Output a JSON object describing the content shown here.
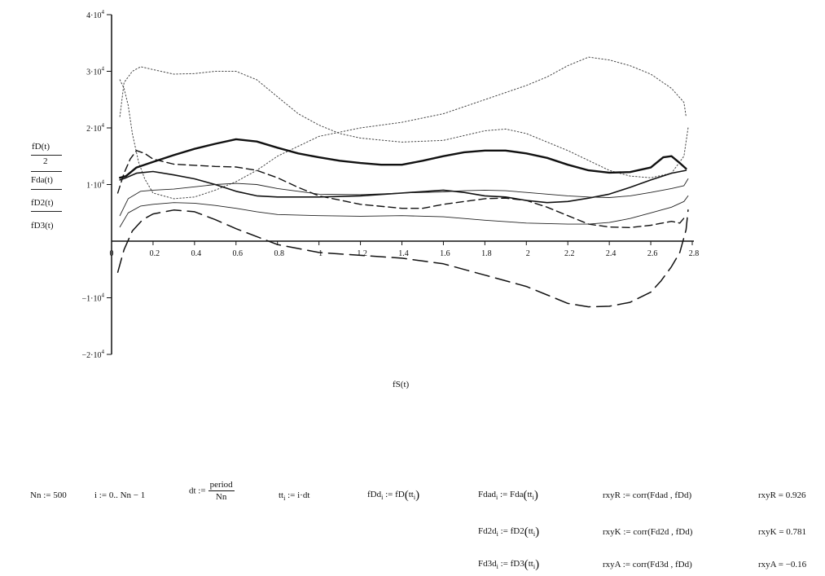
{
  "chart_data": {
    "type": "line",
    "xlabel": "fS(t)",
    "ylabels": [
      "fD(t)",
      "2",
      "Fda(t)",
      "fD2(t)",
      "fD3(t)"
    ],
    "xlim": [
      0,
      2.8
    ],
    "ylim": [
      -20000,
      40000
    ],
    "x_ticks": [
      "0",
      "0.2",
      "0.4",
      "0.6",
      "0.8",
      "1",
      "1.2",
      "1.4",
      "1.6",
      "1.8",
      "2",
      "2.2",
      "2.4",
      "2.6",
      "2.8"
    ],
    "y_ticks": [
      {
        "value": 40000,
        "mant": "4·10",
        "exp": "4"
      },
      {
        "value": 30000,
        "mant": "3·10",
        "exp": "4"
      },
      {
        "value": 20000,
        "mant": "2·10",
        "exp": "4"
      },
      {
        "value": 10000,
        "mant": "1·10",
        "exp": "4"
      },
      {
        "value": -10000,
        "mant": "−1·10",
        "exp": "4"
      },
      {
        "value": -20000,
        "mant": "−2·10",
        "exp": "4"
      }
    ],
    "series": [
      {
        "style": "dotted",
        "points": [
          [
            0.04,
            28500
          ],
          [
            0.06,
            27000
          ],
          [
            0.08,
            24000
          ],
          [
            0.1,
            19000
          ],
          [
            0.13,
            14000
          ],
          [
            0.16,
            11000
          ],
          [
            0.2,
            8500
          ],
          [
            0.3,
            7500
          ],
          [
            0.4,
            7800
          ],
          [
            0.5,
            9000
          ],
          [
            0.6,
            10500
          ],
          [
            0.7,
            12500
          ],
          [
            0.8,
            15000
          ],
          [
            1.0,
            18500
          ],
          [
            1.2,
            20000
          ],
          [
            1.4,
            21000
          ],
          [
            1.6,
            22500
          ],
          [
            1.8,
            25000
          ],
          [
            2.0,
            27500
          ],
          [
            2.1,
            29000
          ],
          [
            2.2,
            31000
          ],
          [
            2.3,
            32500
          ],
          [
            2.4,
            32000
          ],
          [
            2.5,
            31000
          ],
          [
            2.6,
            29500
          ],
          [
            2.7,
            27000
          ],
          [
            2.76,
            24500
          ],
          [
            2.77,
            22000
          ]
        ]
      },
      {
        "style": "dotted",
        "points": [
          [
            0.04,
            22000
          ],
          [
            0.06,
            28000
          ],
          [
            0.1,
            30000
          ],
          [
            0.14,
            30800
          ],
          [
            0.2,
            30300
          ],
          [
            0.3,
            29500
          ],
          [
            0.4,
            29600
          ],
          [
            0.5,
            30000
          ],
          [
            0.6,
            30000
          ],
          [
            0.7,
            28500
          ],
          [
            0.8,
            25500
          ],
          [
            0.9,
            22500
          ],
          [
            1.0,
            20500
          ],
          [
            1.1,
            19000
          ],
          [
            1.2,
            18200
          ],
          [
            1.4,
            17500
          ],
          [
            1.6,
            17800
          ],
          [
            1.8,
            19500
          ],
          [
            1.9,
            19800
          ],
          [
            2.0,
            19000
          ],
          [
            2.2,
            16000
          ],
          [
            2.4,
            12500
          ],
          [
            2.5,
            11500
          ],
          [
            2.6,
            11200
          ],
          [
            2.7,
            12000
          ],
          [
            2.76,
            15000
          ],
          [
            2.78,
            20000
          ]
        ]
      },
      {
        "style": "thick",
        "points": [
          [
            0.04,
            11200
          ],
          [
            0.07,
            11500
          ],
          [
            0.12,
            13000
          ],
          [
            0.2,
            14000
          ],
          [
            0.3,
            15200
          ],
          [
            0.4,
            16300
          ],
          [
            0.5,
            17200
          ],
          [
            0.6,
            18000
          ],
          [
            0.7,
            17600
          ],
          [
            0.8,
            16500
          ],
          [
            0.9,
            15500
          ],
          [
            1.0,
            14800
          ],
          [
            1.1,
            14200
          ],
          [
            1.2,
            13800
          ],
          [
            1.3,
            13500
          ],
          [
            1.4,
            13500
          ],
          [
            1.5,
            14200
          ],
          [
            1.6,
            15000
          ],
          [
            1.7,
            15700
          ],
          [
            1.8,
            16000
          ],
          [
            1.9,
            16000
          ],
          [
            2.0,
            15500
          ],
          [
            2.1,
            14700
          ],
          [
            2.2,
            13500
          ],
          [
            2.3,
            12500
          ],
          [
            2.4,
            12100
          ],
          [
            2.5,
            12200
          ],
          [
            2.6,
            13000
          ],
          [
            2.66,
            14800
          ],
          [
            2.7,
            15000
          ],
          [
            2.74,
            13800
          ],
          [
            2.77,
            12800
          ]
        ]
      },
      {
        "style": "medium",
        "points": [
          [
            0.04,
            10800
          ],
          [
            0.07,
            11200
          ],
          [
            0.12,
            12000
          ],
          [
            0.2,
            12300
          ],
          [
            0.3,
            11700
          ],
          [
            0.4,
            11000
          ],
          [
            0.5,
            10000
          ],
          [
            0.6,
            8800
          ],
          [
            0.7,
            8000
          ],
          [
            0.8,
            7800
          ],
          [
            1.0,
            7800
          ],
          [
            1.2,
            8000
          ],
          [
            1.4,
            8500
          ],
          [
            1.6,
            9000
          ],
          [
            1.7,
            8600
          ],
          [
            1.8,
            8000
          ],
          [
            1.9,
            7800
          ],
          [
            2.0,
            7200
          ],
          [
            2.1,
            6800
          ],
          [
            2.2,
            7000
          ],
          [
            2.3,
            7600
          ],
          [
            2.4,
            8300
          ],
          [
            2.5,
            9500
          ],
          [
            2.6,
            10800
          ],
          [
            2.7,
            12000
          ],
          [
            2.77,
            12500
          ]
        ]
      },
      {
        "style": "dashed",
        "points": [
          [
            0.03,
            8500
          ],
          [
            0.06,
            12000
          ],
          [
            0.09,
            14500
          ],
          [
            0.12,
            16000
          ],
          [
            0.16,
            15500
          ],
          [
            0.2,
            14500
          ],
          [
            0.3,
            13600
          ],
          [
            0.4,
            13400
          ],
          [
            0.5,
            13200
          ],
          [
            0.6,
            13100
          ],
          [
            0.7,
            12500
          ],
          [
            0.8,
            11200
          ],
          [
            0.9,
            9500
          ],
          [
            1.0,
            8000
          ],
          [
            1.2,
            6500
          ],
          [
            1.4,
            5800
          ],
          [
            1.5,
            5800
          ],
          [
            1.6,
            6500
          ],
          [
            1.8,
            7500
          ],
          [
            1.9,
            7600
          ],
          [
            2.0,
            7200
          ],
          [
            2.1,
            6000
          ],
          [
            2.2,
            4500
          ],
          [
            2.3,
            3000
          ],
          [
            2.4,
            2500
          ],
          [
            2.5,
            2400
          ],
          [
            2.6,
            2800
          ],
          [
            2.7,
            3500
          ],
          [
            2.74,
            3200
          ],
          [
            2.77,
            4500
          ]
        ]
      },
      {
        "style": "thin",
        "points": [
          [
            0.04,
            4500
          ],
          [
            0.08,
            7500
          ],
          [
            0.14,
            8800
          ],
          [
            0.2,
            9000
          ],
          [
            0.3,
            9200
          ],
          [
            0.4,
            9600
          ],
          [
            0.5,
            10000
          ],
          [
            0.6,
            10200
          ],
          [
            0.7,
            10000
          ],
          [
            0.8,
            9300
          ],
          [
            0.9,
            8800
          ],
          [
            1.0,
            8300
          ],
          [
            1.2,
            8200
          ],
          [
            1.4,
            8500
          ],
          [
            1.6,
            8700
          ],
          [
            1.7,
            8900
          ],
          [
            1.8,
            9000
          ],
          [
            1.9,
            8900
          ],
          [
            2.0,
            8600
          ],
          [
            2.1,
            8300
          ],
          [
            2.2,
            8000
          ],
          [
            2.3,
            7800
          ],
          [
            2.4,
            7700
          ],
          [
            2.5,
            8000
          ],
          [
            2.6,
            8600
          ],
          [
            2.7,
            9300
          ],
          [
            2.76,
            9800
          ],
          [
            2.78,
            11000
          ]
        ]
      },
      {
        "style": "thin",
        "points": [
          [
            0.04,
            2500
          ],
          [
            0.08,
            5000
          ],
          [
            0.14,
            6200
          ],
          [
            0.2,
            6500
          ],
          [
            0.3,
            6800
          ],
          [
            0.4,
            6700
          ],
          [
            0.5,
            6300
          ],
          [
            0.6,
            5800
          ],
          [
            0.7,
            5200
          ],
          [
            0.8,
            4700
          ],
          [
            1.0,
            4500
          ],
          [
            1.2,
            4400
          ],
          [
            1.4,
            4500
          ],
          [
            1.6,
            4300
          ],
          [
            1.8,
            3700
          ],
          [
            2.0,
            3200
          ],
          [
            2.2,
            3000
          ],
          [
            2.3,
            3000
          ],
          [
            2.4,
            3300
          ],
          [
            2.5,
            4000
          ],
          [
            2.6,
            5000
          ],
          [
            2.7,
            6000
          ],
          [
            2.76,
            7000
          ],
          [
            2.78,
            8000
          ]
        ]
      },
      {
        "style": "long-dashed",
        "points": [
          [
            0.03,
            -5500
          ],
          [
            0.06,
            -1500
          ],
          [
            0.1,
            1800
          ],
          [
            0.15,
            3800
          ],
          [
            0.2,
            4800
          ],
          [
            0.3,
            5500
          ],
          [
            0.4,
            5200
          ],
          [
            0.5,
            3800
          ],
          [
            0.6,
            2200
          ],
          [
            0.7,
            800
          ],
          [
            0.8,
            -600
          ],
          [
            1.0,
            -2000
          ],
          [
            1.2,
            -2500
          ],
          [
            1.4,
            -3000
          ],
          [
            1.6,
            -4000
          ],
          [
            1.8,
            -6000
          ],
          [
            2.0,
            -8000
          ],
          [
            2.1,
            -9500
          ],
          [
            2.2,
            -11000
          ],
          [
            2.3,
            -11600
          ],
          [
            2.4,
            -11500
          ],
          [
            2.5,
            -10800
          ],
          [
            2.6,
            -9000
          ],
          [
            2.65,
            -7000
          ],
          [
            2.7,
            -4500
          ],
          [
            2.74,
            -2000
          ],
          [
            2.77,
            2000
          ],
          [
            2.78,
            5500
          ]
        ]
      }
    ]
  },
  "equations": {
    "nn": "Nn := 500",
    "range": "i := 0.. Nn − 1",
    "dt_lhs": "dt :=",
    "dt_num": "period",
    "dt_den": "Nn",
    "tt_lhs": "tt",
    "tt_sub": "i",
    "tt_rhs": ":= i·dt",
    "fdd_lhs": "fDd",
    "fdd_sub": "i",
    "fdd_rhs": ":= fD",
    "arg_a": "tt",
    "arg_b": "i",
    "fdad_lhs": "Fdad",
    "fdad_sub": "i",
    "fdad_rhs": ":= Fda",
    "fd2d_lhs": "Fd2d",
    "fd2d_sub": "i",
    "fd2d_rhs": ":= fD2",
    "fd3d_lhs": "Fd3d",
    "fd3d_sub": "i",
    "fd3d_rhs": ":= fD3",
    "rxyR_def": "rxyR := corr(Fdad , fDd)",
    "rxyK_def": "rxyK := corr(Fd2d , fDd)",
    "rxyA_def": "rxyA := corr(Fd3d , fDd)",
    "rxyR_val": "rxyR = 0.926",
    "rxyK_val": "rxyK = 0.781",
    "rxyA_val": "rxyA = −0.16"
  }
}
